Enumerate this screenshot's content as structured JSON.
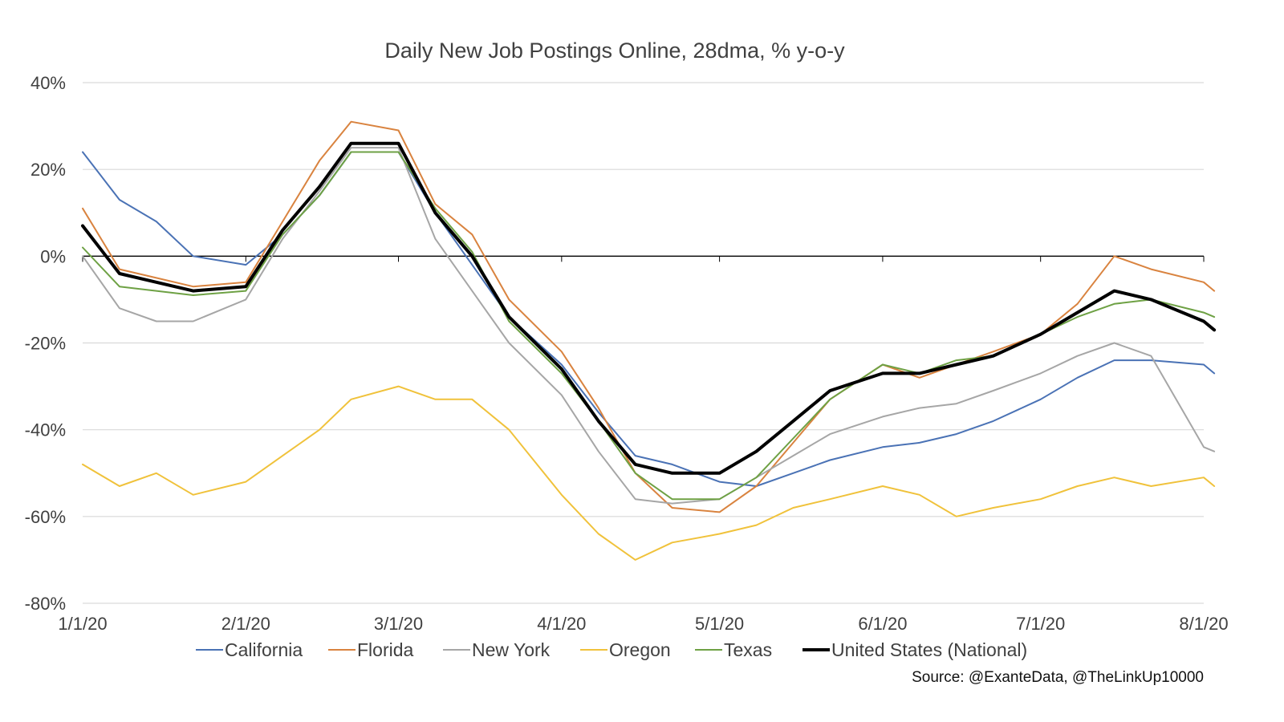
{
  "chart_data": {
    "type": "line",
    "title": "Daily New Job Postings Online, 28dma, % y-o-y",
    "source": "Source: @ExanteData, @TheLinkUp10000",
    "xlabel": "",
    "ylabel": "",
    "x_ticks": [
      "1/1/20",
      "2/1/20",
      "3/1/20",
      "4/1/20",
      "5/1/20",
      "6/1/20",
      "7/1/20",
      "8/1/20"
    ],
    "y_ticks": [
      "40%",
      "20%",
      "0%",
      "-20%",
      "-40%",
      "-60%",
      "-80%"
    ],
    "ylim": [
      -80,
      40
    ],
    "x_dates": [
      "2020-01-01",
      "2020-01-08",
      "2020-01-15",
      "2020-01-22",
      "2020-02-01",
      "2020-02-08",
      "2020-02-15",
      "2020-02-21",
      "2020-03-01",
      "2020-03-08",
      "2020-03-15",
      "2020-03-22",
      "2020-04-01",
      "2020-04-08",
      "2020-04-15",
      "2020-04-22",
      "2020-05-01",
      "2020-05-08",
      "2020-05-15",
      "2020-05-22",
      "2020-06-01",
      "2020-06-08",
      "2020-06-15",
      "2020-06-22",
      "2020-07-01",
      "2020-07-08",
      "2020-07-15",
      "2020-07-22",
      "2020-08-01",
      "2020-08-03"
    ],
    "grid": true,
    "legend_position": "bottom",
    "series": [
      {
        "name": "California",
        "color": "#4a72b5",
        "width": 2,
        "values": [
          24,
          13,
          8,
          0,
          -2,
          5,
          14,
          24,
          24,
          10,
          -2,
          -14,
          -25,
          -36,
          -46,
          -48,
          -52,
          -53,
          -50,
          -47,
          -44,
          -43,
          -41,
          -38,
          -33,
          -28,
          -24,
          -24,
          -25,
          -27
        ]
      },
      {
        "name": "Florida",
        "color": "#d9833f",
        "width": 2,
        "values": [
          11,
          -3,
          -5,
          -7,
          -6,
          8,
          22,
          31,
          29,
          12,
          5,
          -10,
          -22,
          -35,
          -50,
          -58,
          -59,
          -53,
          -43,
          -33,
          -25,
          -28,
          -25,
          -22,
          -18,
          -11,
          0,
          -3,
          -6,
          -8
        ]
      },
      {
        "name": "New York",
        "color": "#a6a6a6",
        "width": 2,
        "values": [
          0,
          -12,
          -15,
          -15,
          -10,
          4,
          15,
          25,
          25,
          4,
          -8,
          -20,
          -32,
          -45,
          -56,
          -57,
          -56,
          -51,
          -46,
          -41,
          -37,
          -35,
          -34,
          -31,
          -27,
          -23,
          -20,
          -23,
          -44,
          -45
        ]
      },
      {
        "name": "Oregon",
        "color": "#f0c23b",
        "width": 2,
        "values": [
          -48,
          -53,
          -50,
          -55,
          -52,
          -46,
          -40,
          -33,
          -30,
          -33,
          -33,
          -40,
          -55,
          -64,
          -70,
          -66,
          -64,
          -62,
          -58,
          -56,
          -53,
          -55,
          -60,
          -58,
          -56,
          -53,
          -51,
          -53,
          -51,
          -53
        ]
      },
      {
        "name": "Texas",
        "color": "#6ea144",
        "width": 2,
        "values": [
          2,
          -7,
          -8,
          -9,
          -8,
          5,
          14,
          24,
          24,
          11,
          1,
          -15,
          -27,
          -38,
          -50,
          -56,
          -56,
          -51,
          -42,
          -33,
          -25,
          -27,
          -24,
          -23,
          -18,
          -14,
          -11,
          -10,
          -13,
          -14
        ]
      },
      {
        "name": "United States (National)",
        "color": "#000000",
        "width": 4,
        "values": [
          7,
          -4,
          -6,
          -8,
          -7,
          6,
          16,
          26,
          26,
          10,
          0,
          -14,
          -26,
          -38,
          -48,
          -50,
          -50,
          -45,
          -38,
          -31,
          -27,
          -27,
          -25,
          -23,
          -18,
          -13,
          -8,
          -10,
          -15,
          -17
        ]
      }
    ]
  }
}
